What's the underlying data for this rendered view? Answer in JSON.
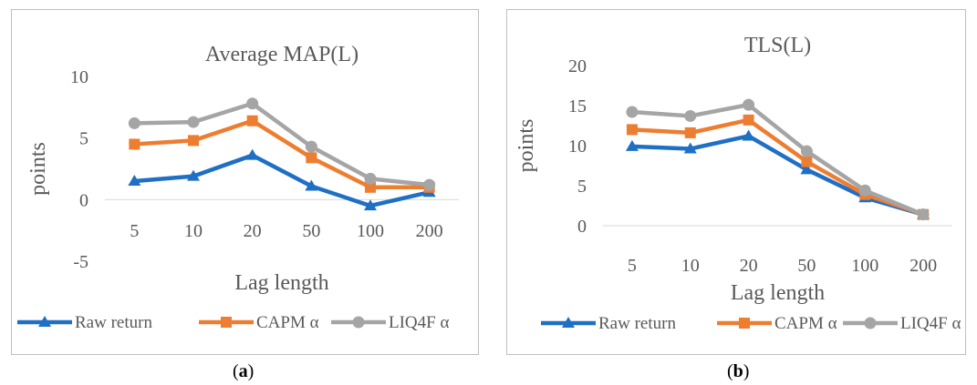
{
  "chart_data": [
    {
      "type": "line",
      "title": "Average MAP(L)",
      "xlabel": "Lag length",
      "ylabel": "points",
      "categories": [
        "5",
        "10",
        "20",
        "50",
        "100",
        "200"
      ],
      "ylim": [
        -5,
        10
      ],
      "yticks": [
        "-5",
        "0",
        "5",
        "10"
      ],
      "grid": false,
      "legend_position": "bottom",
      "series": [
        {
          "name": "Raw return",
          "values": [
            1.5,
            1.9,
            3.6,
            1.1,
            -0.5,
            0.6
          ],
          "color": "#1f6fc5",
          "marker": "triangle"
        },
        {
          "name": "CAPM α",
          "values": [
            4.5,
            4.8,
            6.4,
            3.4,
            1.0,
            1.0
          ],
          "color": "#ed7d31",
          "marker": "square"
        },
        {
          "name": "LIQ4F α",
          "values": [
            6.2,
            6.3,
            7.8,
            4.3,
            1.7,
            1.2
          ],
          "color": "#a5a5a5",
          "marker": "circle"
        }
      ]
    },
    {
      "type": "line",
      "title": "TLS(L)",
      "xlabel": "Lag length",
      "ylabel": "points",
      "categories": [
        "5",
        "10",
        "20",
        "50",
        "100",
        "200"
      ],
      "ylim": [
        0,
        20
      ],
      "yticks": [
        "0",
        "5",
        "10",
        "15",
        "20"
      ],
      "grid": false,
      "legend_position": "bottom",
      "series": [
        {
          "name": "Raw return",
          "values": [
            9.9,
            9.6,
            11.2,
            7.0,
            3.5,
            1.4
          ],
          "color": "#1f6fc5",
          "marker": "triangle"
        },
        {
          "name": "CAPM α",
          "values": [
            12.0,
            11.6,
            13.2,
            8.0,
            3.9,
            1.4
          ],
          "color": "#ed7d31",
          "marker": "square"
        },
        {
          "name": "LIQ4F α",
          "values": [
            14.2,
            13.7,
            15.1,
            9.3,
            4.4,
            1.4
          ],
          "color": "#a5a5a5",
          "marker": "circle"
        }
      ]
    }
  ],
  "captions": {
    "a": "a",
    "b": "b"
  }
}
